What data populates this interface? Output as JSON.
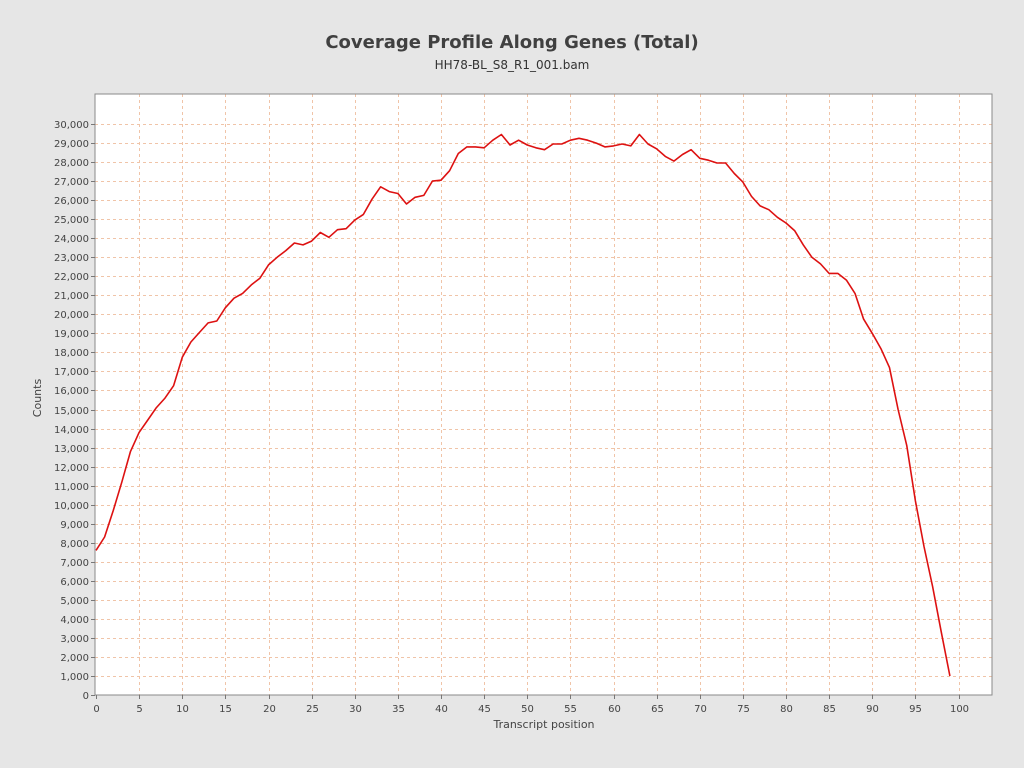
{
  "chart_data": {
    "type": "line",
    "title": "Coverage Profile Along Genes (Total)",
    "subtitle": "HH78-BL_S8_R1_001.bam",
    "xlabel": "Transcript position",
    "ylabel": "Counts",
    "xlim": [
      0,
      104
    ],
    "ylim": [
      0,
      31000
    ],
    "x_ticks": [
      0,
      5,
      10,
      15,
      20,
      25,
      30,
      35,
      40,
      45,
      50,
      55,
      60,
      65,
      70,
      75,
      80,
      85,
      90,
      95,
      100
    ],
    "x_tick_labels": [
      "0",
      "5",
      "10",
      "15",
      "20",
      "25",
      "30",
      "35",
      "40",
      "45",
      "50",
      "55",
      "60",
      "65",
      "70",
      "75",
      "80",
      "85",
      "90",
      "95",
      "100"
    ],
    "y_ticks": [
      0,
      1000,
      2000,
      3000,
      4000,
      5000,
      6000,
      7000,
      8000,
      9000,
      10000,
      11000,
      12000,
      13000,
      14000,
      15000,
      16000,
      17000,
      18000,
      19000,
      20000,
      21000,
      22000,
      23000,
      24000,
      25000,
      26000,
      27000,
      28000,
      29000,
      30000
    ],
    "y_tick_labels": [
      "0",
      "1,000",
      "2,000",
      "3,000",
      "4,000",
      "5,000",
      "6,000",
      "7,000",
      "8,000",
      "9,000",
      "10,000",
      "11,000",
      "12,000",
      "13,000",
      "14,000",
      "15,000",
      "16,000",
      "17,000",
      "18,000",
      "19,000",
      "20,000",
      "21,000",
      "22,000",
      "23,000",
      "24,000",
      "25,000",
      "26,000",
      "27,000",
      "28,000",
      "29,000",
      "30,000"
    ],
    "grid": true,
    "legend": "none",
    "colors": {
      "series": "#dd1111",
      "grid": "#f0c4a8",
      "plot_bg": "#ffffff",
      "page_bg": "#e6e6e6"
    },
    "series": [
      {
        "x": [
          0,
          1,
          2,
          3,
          4,
          5,
          6,
          7,
          8,
          9,
          10,
          11,
          12,
          13,
          14,
          15,
          16,
          17,
          18,
          19,
          20,
          21,
          22,
          23,
          24,
          25,
          26,
          27,
          28,
          29,
          30,
          31,
          32,
          33,
          34,
          35,
          36,
          37,
          38,
          39,
          40,
          41,
          42,
          43,
          44,
          45,
          46,
          47,
          48,
          49,
          50,
          51,
          52,
          53,
          54,
          55,
          56,
          57,
          58,
          59,
          60,
          61,
          62,
          63,
          64,
          65,
          66,
          67,
          68,
          69,
          70,
          71,
          72,
          73,
          74,
          75,
          76,
          77,
          78,
          79,
          80,
          81,
          82,
          83,
          84,
          85,
          86,
          87,
          88,
          89,
          90,
          91,
          92,
          93,
          94,
          95,
          96,
          97,
          98,
          99
        ],
        "values": [
          7600,
          8300,
          9700,
          11200,
          12800,
          13800,
          14450,
          15100,
          15600,
          16250,
          17750,
          18550,
          19050,
          19550,
          19650,
          20350,
          20850,
          21100,
          21550,
          21900,
          22600,
          23000,
          23350,
          23750,
          23650,
          23850,
          24300,
          24050,
          24450,
          24500,
          24950,
          25250,
          26050,
          26700,
          26450,
          26350,
          25800,
          26150,
          26250,
          27000,
          27050,
          27550,
          28450,
          28800,
          28800,
          28750,
          29150,
          29450,
          28900,
          29150,
          28900,
          28750,
          28650,
          28950,
          28950,
          29150,
          29250,
          29150,
          29000,
          28800,
          28850,
          28950,
          28850,
          29450,
          28950,
          28700,
          28300,
          28050,
          28400,
          28650,
          28200,
          28100,
          27950,
          27950,
          27400,
          26950,
          26200,
          25700,
          25500,
          25100,
          24800,
          24400,
          23650,
          23000,
          22650,
          22150,
          22150,
          21800,
          21100,
          19750,
          19000,
          18200,
          17200,
          15000,
          13100,
          10200,
          7800,
          5700,
          3300,
          1000
        ]
      }
    ]
  }
}
